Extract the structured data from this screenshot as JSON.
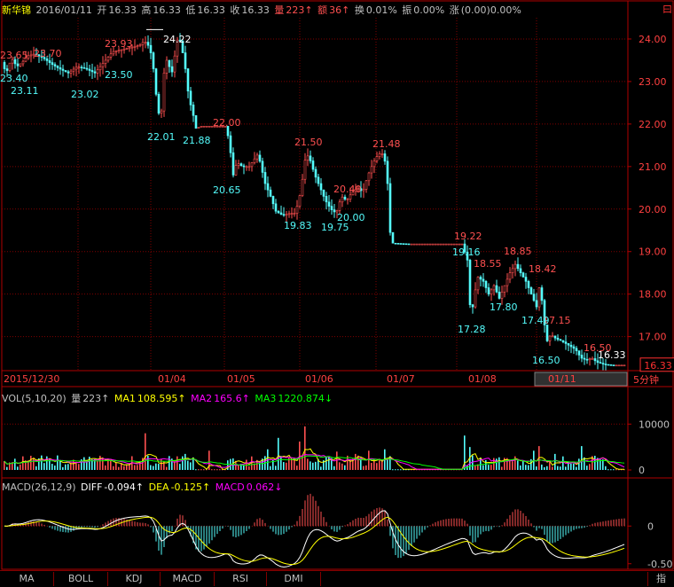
{
  "header": {
    "name": "新华锦",
    "date": "2016/01/11",
    "open_label": "开",
    "open": "16.33",
    "high_label": "高",
    "high": "16.33",
    "low_label": "低",
    "low": "16.33",
    "close_label": "收",
    "close": "16.33",
    "vol_label": "量",
    "vol": "223↑",
    "amt_label": "额",
    "amt": "36↑",
    "turn_label": "换",
    "turn": "0.01%",
    "amp_label": "振",
    "amp": "0.00%",
    "chg_label": "涨",
    "chg": "(0.00)0.00%",
    "corner": "曰"
  },
  "colors": {
    "up": "#ff5050",
    "down": "#54fcfc",
    "grid": "#800000",
    "axis": "#b00000",
    "ma1": "#ffff00",
    "ma2": "#ff00ff",
    "ma3": "#00ff00",
    "white": "#ffffff"
  },
  "price_axis": {
    "labels": [
      "24.00",
      "23.00",
      "22.00",
      "21.00",
      "20.00",
      "19.00",
      "18.00",
      "17.00"
    ],
    "values": [
      24,
      23,
      22,
      21,
      20,
      19,
      18,
      17
    ],
    "current": "16.33",
    "period": "5分钟"
  },
  "date_axis": {
    "labels": [
      "2015/12/30",
      "01/04",
      "01/05",
      "01/06",
      "01/07",
      "01/08",
      "01/11"
    ],
    "highlighted": "01/11"
  },
  "annotations": [
    {
      "text": "23.65",
      "color": "up"
    },
    {
      "text": "23.70",
      "color": "up"
    },
    {
      "text": "23.93",
      "color": "up"
    },
    {
      "text": "24.22",
      "color": "white"
    },
    {
      "text": "22.00",
      "color": "up"
    },
    {
      "text": "21.50",
      "color": "up"
    },
    {
      "text": "21.48",
      "color": "up"
    },
    {
      "text": "20.40",
      "color": "up"
    },
    {
      "text": "19.22",
      "color": "up"
    },
    {
      "text": "18.55",
      "color": "up"
    },
    {
      "text": "18.85",
      "color": "up"
    },
    {
      "text": "18.42",
      "color": "up"
    },
    {
      "text": "17.15",
      "color": "up"
    },
    {
      "text": "16.50",
      "color": "up"
    },
    {
      "text": "23.40",
      "color": "down"
    },
    {
      "text": "23.11",
      "color": "down"
    },
    {
      "text": "23.02",
      "color": "down"
    },
    {
      "text": "23.50",
      "color": "down"
    },
    {
      "text": "22.01",
      "color": "down"
    },
    {
      "text": "21.88",
      "color": "down"
    },
    {
      "text": "20.65",
      "color": "down"
    },
    {
      "text": "19.83",
      "color": "down"
    },
    {
      "text": "19.75",
      "color": "down"
    },
    {
      "text": "20.00",
      "color": "down"
    },
    {
      "text": "19.16",
      "color": "down"
    },
    {
      "text": "17.28",
      "color": "down"
    },
    {
      "text": "17.80",
      "color": "down"
    },
    {
      "text": "17.49",
      "color": "down"
    },
    {
      "text": "16.50",
      "color": "down"
    },
    {
      "text": "16.33",
      "color": "white"
    }
  ],
  "vol_header": {
    "name": "VOL(5,10,20)",
    "vol_label": "量",
    "vol": "223↑",
    "ma1_label": "MA1",
    "ma1": "108.595↑",
    "ma2_label": "MA2",
    "ma2": "165.6↑",
    "ma3_label": "MA3",
    "ma3": "1220.874↓"
  },
  "vol_axis": {
    "labels": [
      "10000",
      "0"
    ],
    "values": [
      10000,
      0
    ]
  },
  "macd_header": {
    "name": "MACD(26,12,9)",
    "diff_label": "DIFF",
    "diff": "-0.094↑",
    "dea_label": "DEA",
    "dea": "-0.125↑",
    "macd_label": "MACD",
    "macd": "0.062↓"
  },
  "macd_axis": {
    "labels": [
      "0",
      "-0.50"
    ],
    "values": [
      0,
      -0.5
    ]
  },
  "tabs": [
    "MA",
    "BOLL",
    "KDJ",
    "MACD",
    "RSI",
    "DMI"
  ],
  "corner_tab": "指",
  "chart_data": {
    "type": "candlestick",
    "title": "新华锦 5分钟",
    "ylim": [
      16.2,
      24.5
    ],
    "days": [
      "2015/12/30",
      "2015/12/31",
      "01/04",
      "01/05",
      "01/06",
      "01/07",
      "01/08",
      "01/11"
    ],
    "key_points": [
      {
        "x": "2015/12/30",
        "y": 23.65
      },
      {
        "x": "2015/12/30",
        "y": 23.4
      },
      {
        "x": "2015/12/30",
        "y": 23.11
      },
      {
        "x": "2015/12/31",
        "y": 23.7
      },
      {
        "x": "2015/12/31",
        "y": 23.02
      },
      {
        "x": "2015/12/31",
        "y": 23.5
      },
      {
        "x": "2015/12/31",
        "y": 23.93
      },
      {
        "x": "01/04",
        "y": 24.22
      },
      {
        "x": "01/04",
        "y": 22.01
      },
      {
        "x": "01/04",
        "y": 21.88
      },
      {
        "x": "01/05",
        "y": 22.0
      },
      {
        "x": "01/05",
        "y": 20.65
      },
      {
        "x": "01/05",
        "y": 21.5
      },
      {
        "x": "01/05",
        "y": 19.83
      },
      {
        "x": "01/06",
        "y": 19.75
      },
      {
        "x": "01/06",
        "y": 20.4
      },
      {
        "x": "01/06",
        "y": 20.0
      },
      {
        "x": "01/06",
        "y": 21.48
      },
      {
        "x": "01/07",
        "y": 19.22
      },
      {
        "x": "01/08",
        "y": 19.16
      },
      {
        "x": "01/08",
        "y": 17.28
      },
      {
        "x": "01/08",
        "y": 18.55
      },
      {
        "x": "01/08",
        "y": 17.8
      },
      {
        "x": "01/08",
        "y": 18.85
      },
      {
        "x": "01/08",
        "y": 17.49
      },
      {
        "x": "01/08",
        "y": 18.42
      },
      {
        "x": "01/11",
        "y": 17.15
      },
      {
        "x": "01/11",
        "y": 16.5
      },
      {
        "x": "01/11",
        "y": 16.5
      },
      {
        "x": "01/11",
        "y": 16.33
      }
    ]
  }
}
